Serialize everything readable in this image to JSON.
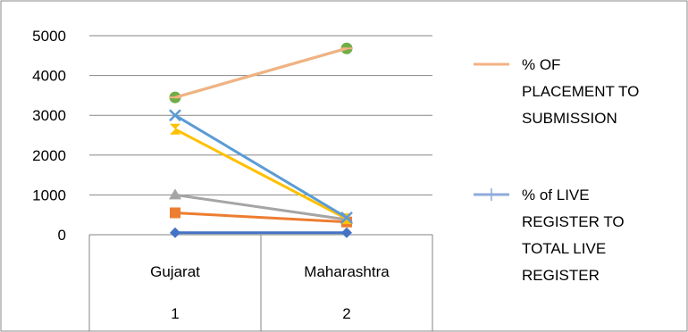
{
  "chart_data": {
    "type": "line",
    "categories": [
      "Gujarat",
      "Maharashtra"
    ],
    "category_numbers": [
      "1",
      "2"
    ],
    "ylim": [
      0,
      5000
    ],
    "y_ticks": [
      "0",
      "1000",
      "2000",
      "3000",
      "4000",
      "5000"
    ],
    "grid": true,
    "legend_position": "right",
    "series": [
      {
        "values": [
          50,
          50
        ],
        "color": "#4472C4",
        "marker": "diamond"
      },
      {
        "values": [
          550,
          320
        ],
        "color": "#ED7D31",
        "marker": "square"
      },
      {
        "values": [
          1000,
          380
        ],
        "color": "#A5A5A5",
        "marker": "triangle"
      },
      {
        "values": [
          2650,
          400
        ],
        "color": "#FFC000",
        "marker": "bowtie"
      },
      {
        "values": [
          3000,
          430
        ],
        "color": "#5B9BD5",
        "marker": "x"
      },
      {
        "values": [
          3450,
          4680
        ],
        "color": "#70AD47",
        "marker": "circle"
      },
      {
        "name": "% OF PLACEMENT TO SUBMISSION",
        "values": [
          3450,
          4680
        ],
        "color": "#F4B183",
        "marker": "dash"
      },
      {
        "name": "% of LIVE REGISTER TO TOTAL LIVE REGISTER",
        "values": [
          null,
          null
        ],
        "color": "#8FAADC",
        "marker": "plus"
      }
    ],
    "legend": [
      {
        "lines": [
          "% OF",
          "PLACEMENT TO",
          "SUBMISSION"
        ],
        "color": "#F4B183",
        "marker": "dash"
      },
      {
        "lines": [
          "% of LIVE",
          "REGISTER TO",
          "TOTAL LIVE",
          "REGISTER"
        ],
        "color": "#8FAADC",
        "marker": "plus"
      }
    ]
  }
}
